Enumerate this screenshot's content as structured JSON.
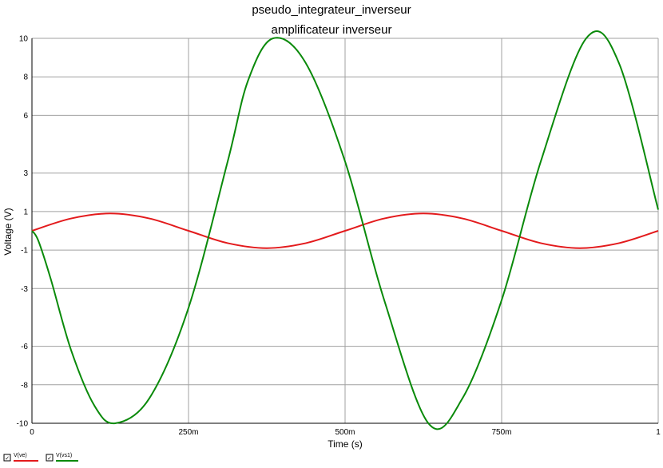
{
  "chart_data": {
    "type": "line",
    "title": "pseudo_integrateur_inverseur",
    "subtitle": "amplificateur inverseur",
    "xlabel": "Time (s)",
    "ylabel": "Voltage (V)",
    "xlim": [
      0,
      1
    ],
    "ylim": [
      -10,
      10
    ],
    "grid": true,
    "x_ticks": [
      {
        "value": 0,
        "label": "0"
      },
      {
        "value": 0.25,
        "label": "250m"
      },
      {
        "value": 0.5,
        "label": "500m"
      },
      {
        "value": 0.75,
        "label": "750m"
      },
      {
        "value": 1,
        "label": "1"
      }
    ],
    "y_ticks": [
      {
        "value": 10,
        "label": "10"
      },
      {
        "value": 8,
        "label": "8"
      },
      {
        "value": 6,
        "label": "6"
      },
      {
        "value": 3,
        "label": "3"
      },
      {
        "value": 1,
        "label": "1"
      },
      {
        "value": -1,
        "label": "-1"
      },
      {
        "value": -3,
        "label": "-3"
      },
      {
        "value": -6,
        "label": "-6"
      },
      {
        "value": -8,
        "label": "-8"
      },
      {
        "value": -10,
        "label": "-10"
      }
    ],
    "series": [
      {
        "name": "V(ve)",
        "color": "#e31a1c",
        "x": [
          0,
          0.0625,
          0.125,
          0.1875,
          0.25,
          0.3125,
          0.375,
          0.4375,
          0.5,
          0.5625,
          0.625,
          0.6875,
          0.75,
          0.8125,
          0.875,
          0.9375,
          1
        ],
        "y": [
          0,
          0.64,
          0.9,
          0.64,
          0,
          -0.64,
          -0.9,
          -0.64,
          0,
          0.64,
          0.9,
          0.64,
          0,
          -0.64,
          -0.9,
          -0.64,
          0
        ]
      },
      {
        "name": "V(vs1)",
        "color": "#0a8a0a",
        "x": [
          0,
          0.01,
          0.03,
          0.0625,
          0.1,
          0.133,
          0.1875,
          0.25,
          0.3125,
          0.345,
          0.385,
          0.4375,
          0.5,
          0.5625,
          0.633,
          0.6875,
          0.75,
          0.8125,
          0.885,
          0.9375,
          1
        ],
        "y": [
          0,
          -0.5,
          -2.5,
          -6.2,
          -9.1,
          -10,
          -8.7,
          -4.0,
          3.6,
          7.8,
          10,
          8.7,
          3.6,
          -3.6,
          -10,
          -8.7,
          -3.6,
          3.6,
          10,
          8.7,
          1.1
        ]
      }
    ],
    "legend": {
      "placement": "bottom-left",
      "checkbox_glyph": "✓"
    }
  }
}
